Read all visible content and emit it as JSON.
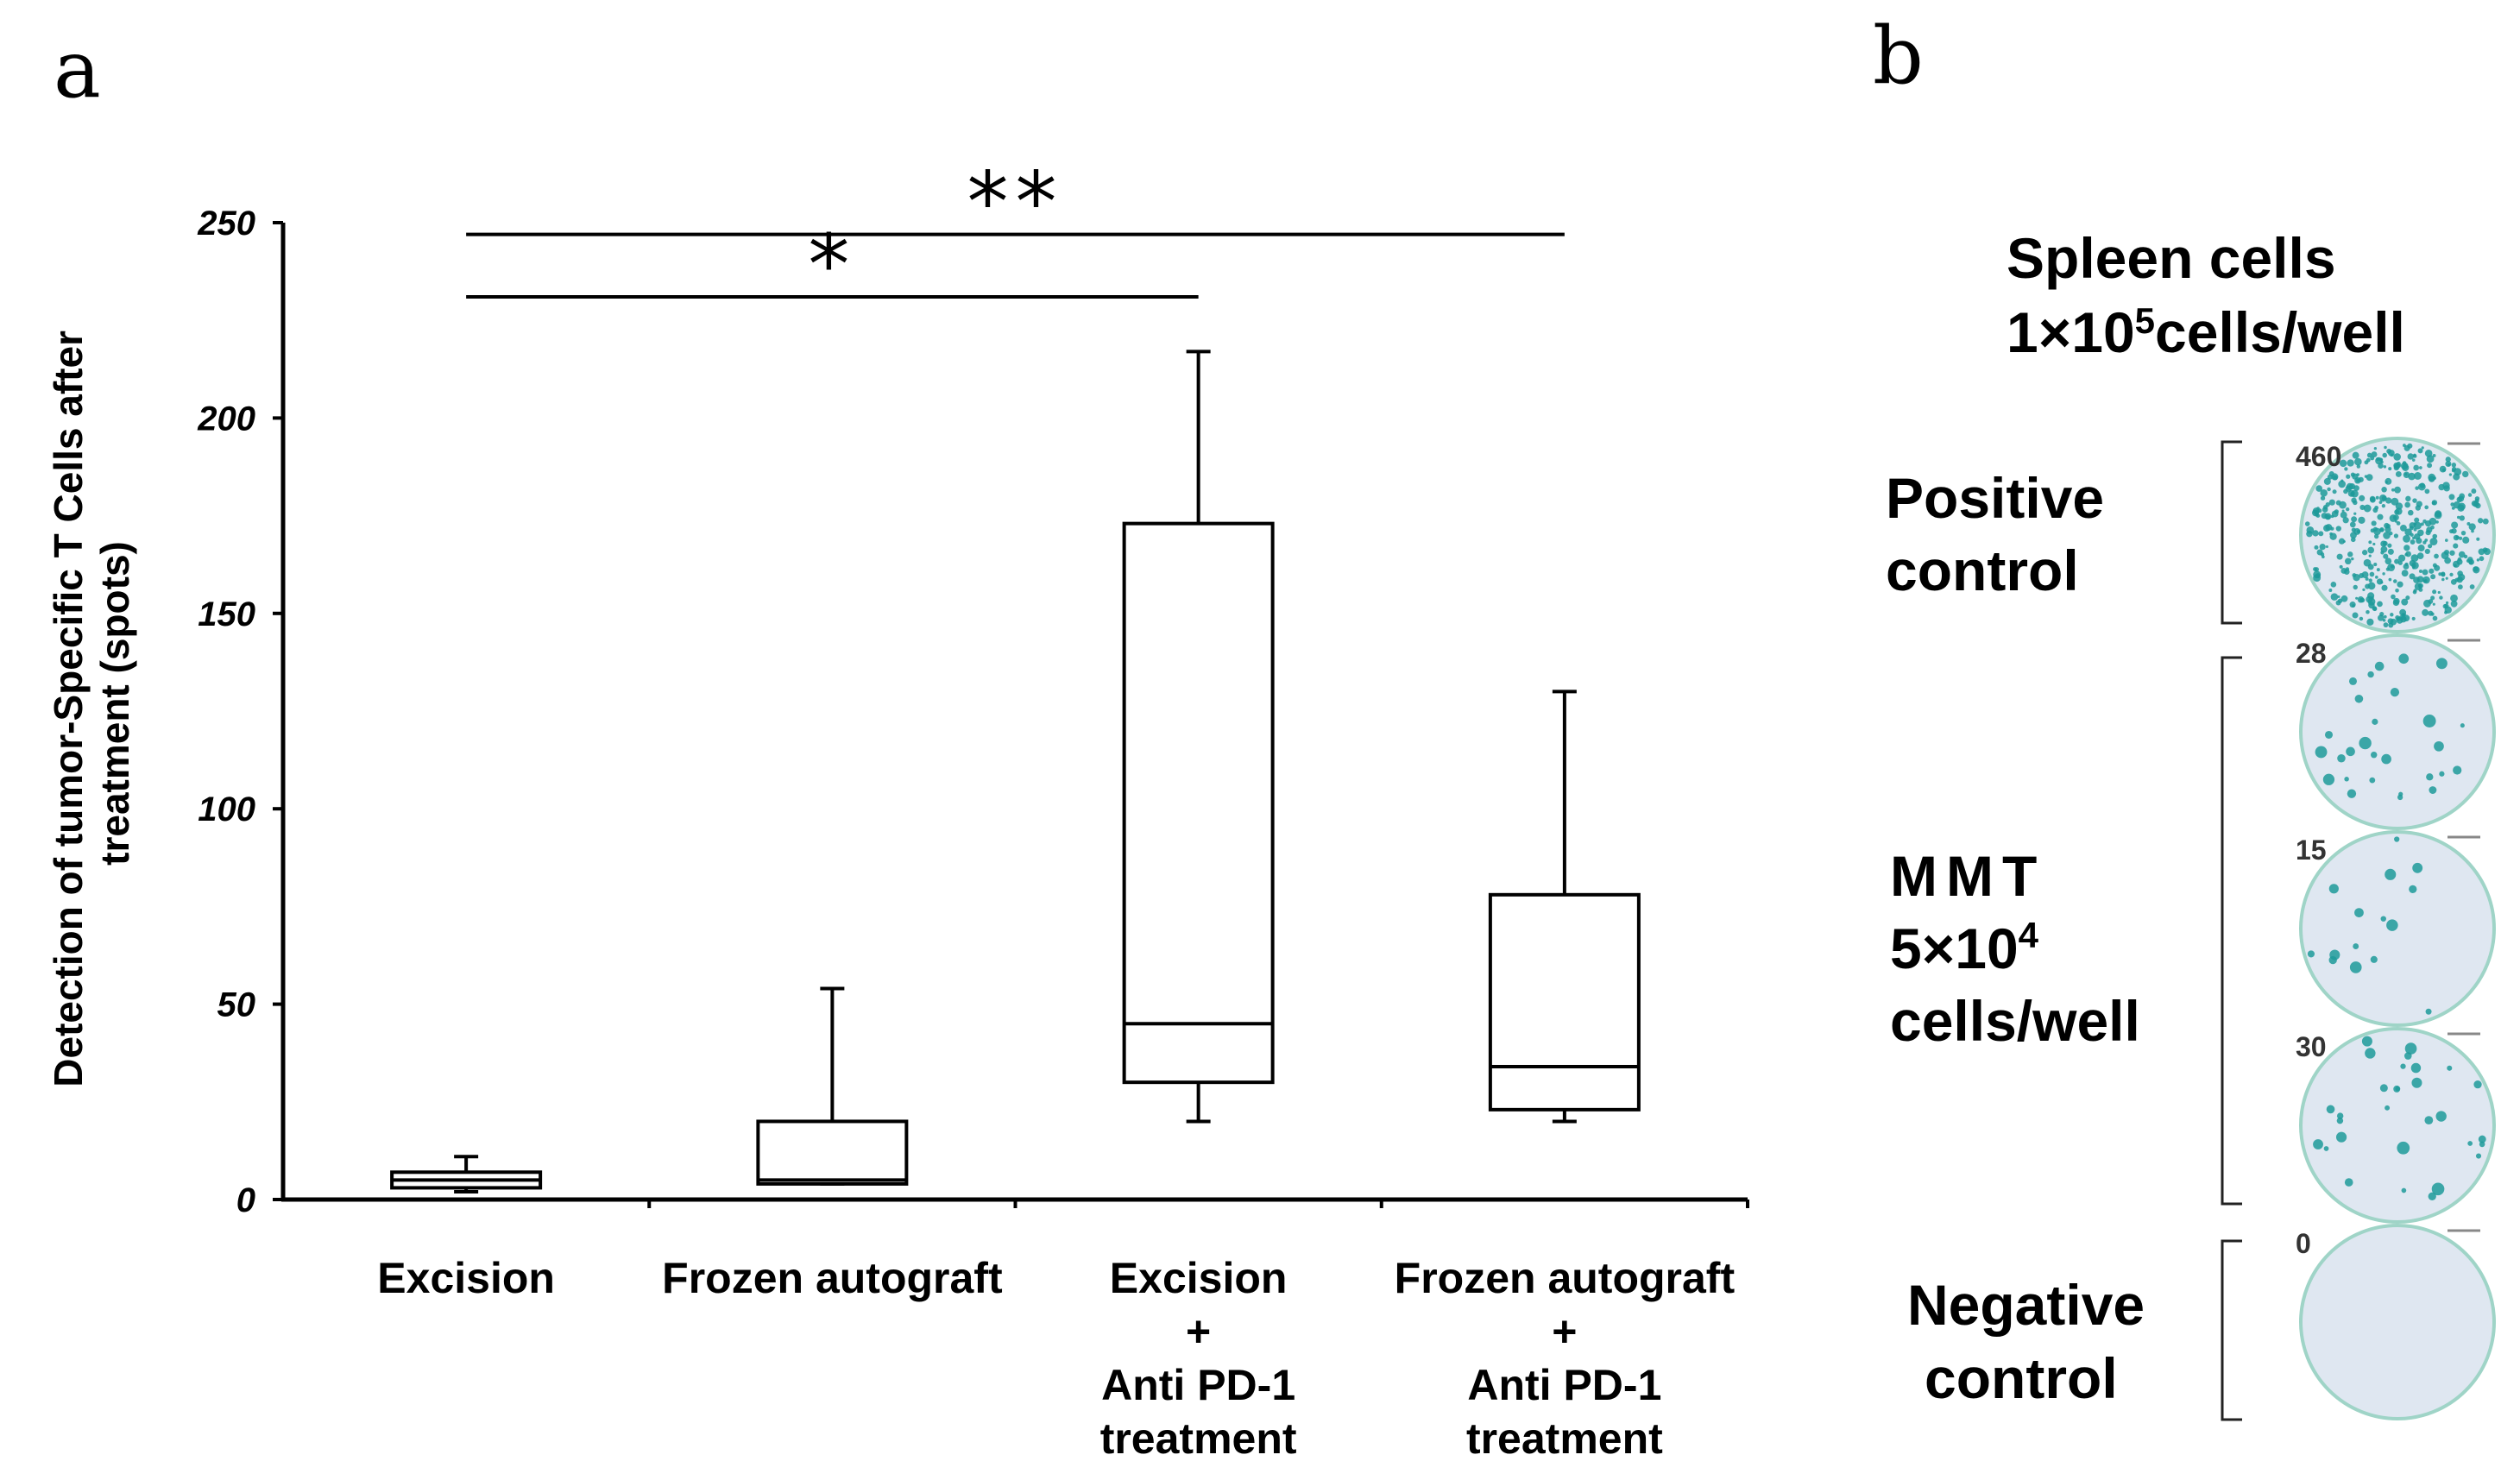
{
  "panel_a": {
    "label": "a",
    "chart_data": {
      "type": "box",
      "ylabel_lines": [
        "Detection of tumor-Specific T Cells after",
        "treatment (spots)"
      ],
      "ylim": [
        0,
        250
      ],
      "yticks": [
        0,
        50,
        100,
        150,
        200,
        250
      ],
      "categories": [
        {
          "lines": [
            "Excision"
          ],
          "whisker_low": 2,
          "q1": 3,
          "median": 5,
          "q3": 7,
          "whisker_high": 11
        },
        {
          "lines": [
            "Frozen autograft"
          ],
          "whisker_low": 4,
          "q1": 4,
          "median": 5,
          "q3": 20,
          "whisker_high": 54
        },
        {
          "lines": [
            "Excision",
            "+",
            "Anti PD-1",
            "treatment"
          ],
          "whisker_low": 20,
          "q1": 30,
          "median": 45,
          "q3": 173,
          "whisker_high": 217
        },
        {
          "lines": [
            "Frozen autograft",
            "+",
            "Anti PD-1",
            "treatment"
          ],
          "whisker_low": 20,
          "q1": 23,
          "median": 34,
          "q3": 78,
          "whisker_high": 130
        }
      ],
      "significance": [
        {
          "label": "*",
          "from": 0,
          "to": 2,
          "value": 231
        },
        {
          "label": "**",
          "from": 0,
          "to": 3,
          "value": 247
        }
      ]
    }
  },
  "panel_b": {
    "label": "b",
    "title_line1": "Spleen cells",
    "title_line2_prefix": "1×10",
    "title_line2_sup": "5",
    "title_line2_suffix": "cells/well",
    "positive_line1": "Positive",
    "positive_line2": "control",
    "mmt_line1": "MMT",
    "mmt_line2_prefix": "5×10",
    "mmt_line2_sup": "4",
    "mmt_line3": "cells/well",
    "negative_line1": "Negative",
    "negative_line2": "control",
    "wells": [
      {
        "count": "460",
        "spots": 460
      },
      {
        "count": "28",
        "spots": 28
      },
      {
        "count": "15",
        "spots": 15
      },
      {
        "count": "30",
        "spots": 30
      },
      {
        "count": "0",
        "spots": 0
      }
    ],
    "colors": {
      "well_bg": "#dfe7f1",
      "spot": "#1f9a9a",
      "rim": "#9fd4c7"
    }
  }
}
